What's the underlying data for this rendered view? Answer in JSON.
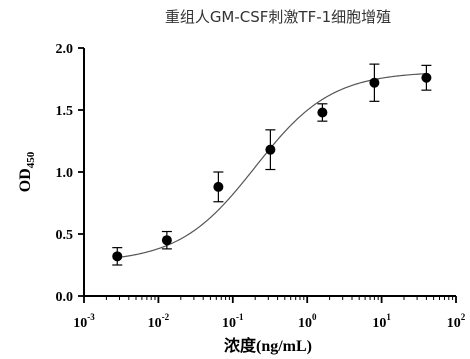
{
  "chart_data": {
    "type": "scatter",
    "title": "重组人GM-CSF刺激TF-1细胞增殖",
    "xlabel": "浓度(ng/mL)",
    "ylabel": "OD450",
    "ylabel_main": "OD",
    "ylabel_sub": "450",
    "x_scale": "log",
    "xlim": [
      0.001,
      100
    ],
    "ylim": [
      0.0,
      2.0
    ],
    "x_ticks": [
      {
        "base": "10",
        "exp": "-3",
        "value": 0.001
      },
      {
        "base": "10",
        "exp": "-2",
        "value": 0.01
      },
      {
        "base": "10",
        "exp": "-1",
        "value": 0.1
      },
      {
        "base": "10",
        "exp": "0",
        "value": 1
      },
      {
        "base": "10",
        "exp": "1",
        "value": 10
      },
      {
        "base": "10",
        "exp": "2",
        "value": 100
      }
    ],
    "y_ticks": [
      {
        "label": "0.0",
        "value": 0.0
      },
      {
        "label": "0.5",
        "value": 0.5
      },
      {
        "label": "1.0",
        "value": 1.0
      },
      {
        "label": "1.5",
        "value": 1.5
      },
      {
        "label": "2.0",
        "value": 2.0
      }
    ],
    "points": [
      {
        "x": 0.0028,
        "y": 0.32,
        "err": 0.07
      },
      {
        "x": 0.013,
        "y": 0.45,
        "err": 0.07
      },
      {
        "x": 0.064,
        "y": 0.88,
        "err": 0.12
      },
      {
        "x": 0.32,
        "y": 1.18,
        "err": 0.16
      },
      {
        "x": 1.6,
        "y": 1.48,
        "err": 0.07
      },
      {
        "x": 8.0,
        "y": 1.72,
        "err": 0.15
      },
      {
        "x": 40.0,
        "y": 1.76,
        "err": 0.1
      }
    ],
    "fit_curve": {
      "bottom": 0.27,
      "top": 1.81,
      "ec50": 0.2,
      "hill": 0.85
    },
    "grid": false,
    "colors": {
      "points": "#000000",
      "curve": "#555555",
      "axes": "#000000",
      "title": "#333333"
    }
  }
}
